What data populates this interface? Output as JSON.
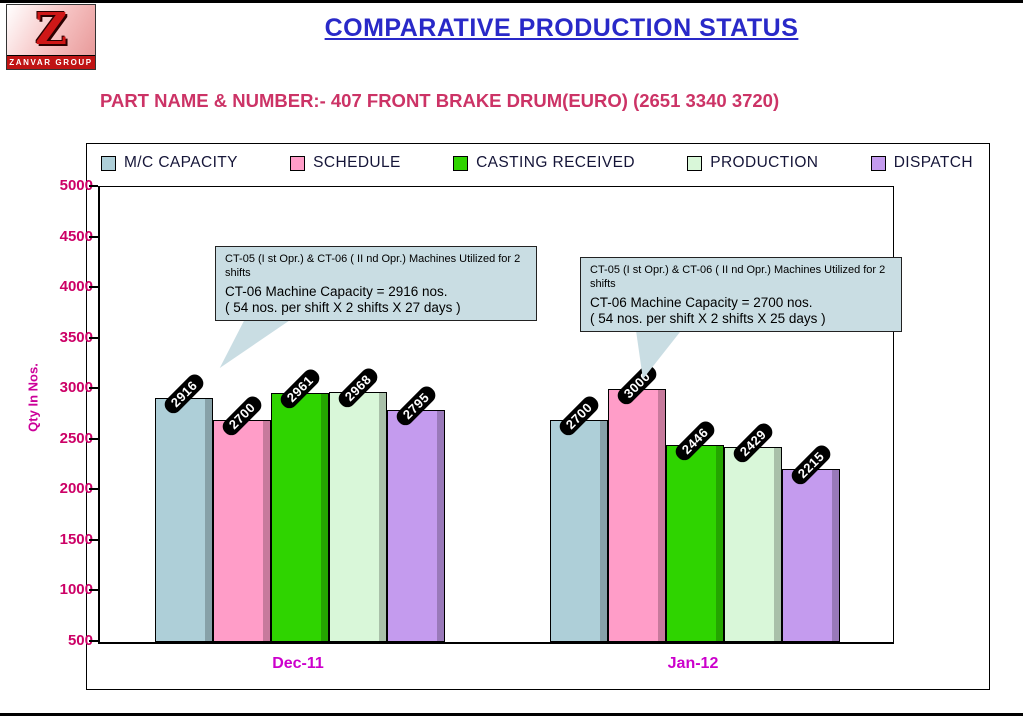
{
  "slide": {
    "title": "COMPARATIVE PRODUCTION STATUS",
    "subtitle": "PART NAME & NUMBER:- 407 FRONT BRAKE DRUM(EURO) (2651 3340 3720)",
    "logo_letter": "Z",
    "logo_caption": "ZANVAR GROUP"
  },
  "chart_data": {
    "type": "bar",
    "title": "",
    "ylabel": "Qty In  Nos.",
    "ylim": [
      500,
      5000
    ],
    "ytick_step": 500,
    "grid": false,
    "legend_position": "top",
    "categories": [
      "Dec-11",
      "Jan-12"
    ],
    "series": [
      {
        "name": "M/C CAPACITY",
        "color": "#aecfd8",
        "values": [
          2916,
          2700
        ]
      },
      {
        "name": "SCHEDULE",
        "color": "#ff9dc8",
        "values": [
          2700,
          3000
        ]
      },
      {
        "name": "CASTING RECEIVED",
        "color": "#2fd400",
        "values": [
          2961,
          2446
        ]
      },
      {
        "name": "PRODUCTION",
        "color": "#d9f7d9",
        "values": [
          2968,
          2429
        ]
      },
      {
        "name": "DISPATCH",
        "color": "#c49bee",
        "values": [
          2795,
          2215
        ]
      }
    ]
  },
  "callouts": [
    {
      "line1": "CT-05 (I st Opr.) & CT-06 ( II nd Opr.) Machines Utilized for  2 shifts",
      "line2": "CT-06 Machine Capacity = 2916 nos.",
      "line3": "( 54 nos. per shift X 2 shifts X 27 days  )"
    },
    {
      "line1": "CT-05 (I st Opr.) & CT-06 ( II nd Opr.) Machines Utilized for  2 shifts",
      "line2": "CT-06 Machine Capacity = 2700 nos.",
      "line3": "( 54 nos. per shift X 2 shifts X 25 days  )"
    }
  ]
}
